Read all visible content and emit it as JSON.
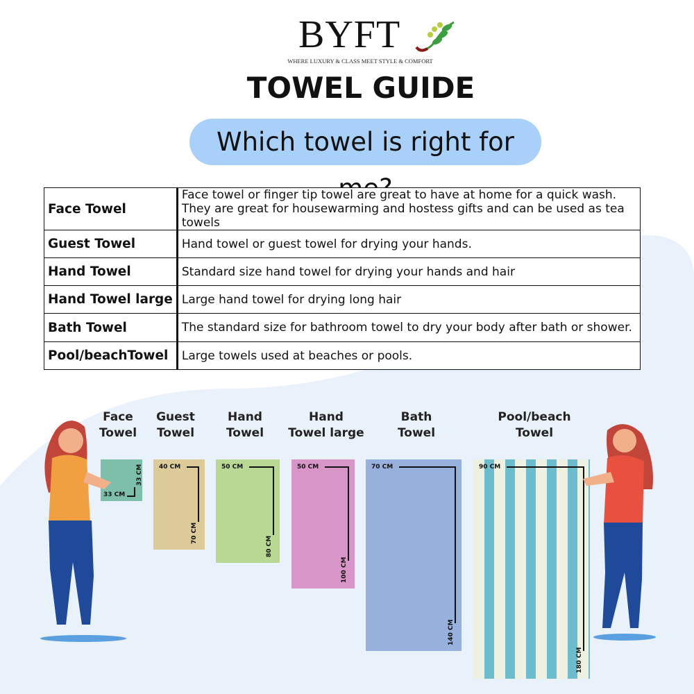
{
  "brand": {
    "name": "BYFT",
    "tagline": "WHERE LUXURY & CLASS MEET STYLE & COMFORT"
  },
  "title": "TOWEL GUIDE",
  "subtitle": "Which towel is right for me?",
  "table": [
    {
      "name": "Face Towel",
      "desc": "Face towel or finger tip towel are great to have at home for a quick wash.",
      "desc2": "They are great for housewarming and hostess gifts and can be used as tea towels"
    },
    {
      "name": "Guest Towel",
      "desc": "Hand towel or guest towel for drying your hands."
    },
    {
      "name": "Hand Towel",
      "desc": "Standard size hand towel for drying your hands and hair"
    },
    {
      "name": "Hand Towel large",
      "desc": "Large hand towel for drying long hair"
    },
    {
      "name": "Bath Towel",
      "desc": "The standard size for bathroom towel to dry your body after bath or shower."
    },
    {
      "name": "Pool/beachTowel",
      "desc": "Large towels used at beaches or pools."
    }
  ],
  "towels": [
    {
      "l1": "Face",
      "l2": "Towel",
      "w": "33 CM",
      "h": "33 CM",
      "color": "#7dbfaa"
    },
    {
      "l1": "Guest",
      "l2": "Towel",
      "w": "40 CM",
      "h": "70 CM",
      "color": "#dccb98"
    },
    {
      "l1": "Hand",
      "l2": "Towel",
      "w": "50 CM",
      "h": "80 CM",
      "color": "#b8d894"
    },
    {
      "l1": "Hand",
      "l2": "Towel large",
      "w": "50 CM",
      "h": "100 CM",
      "color": "#d896c8"
    },
    {
      "l1": "Bath",
      "l2": "Towel",
      "w": "70 CM",
      "h": "140 CM",
      "color": "#98b0dc"
    },
    {
      "l1": "Pool/beach",
      "l2": "Towel",
      "w": "90 CM",
      "h": "180 CM",
      "color": "#eef0e0",
      "stripe": "#6bbccc"
    }
  ],
  "colors": {
    "pill": "#a8d0f8",
    "background_blob": "#e9f1fa"
  }
}
